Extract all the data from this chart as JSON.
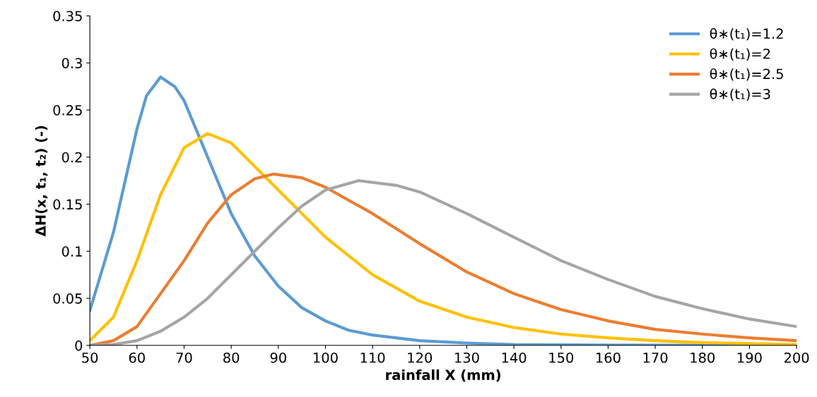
{
  "chart_data": {
    "type": "line",
    "xlabel": "rainfall X (mm)",
    "ylabel": "ΔH(x, t₁, t₂) (-)",
    "xlim": [
      50,
      200
    ],
    "xticks": [
      50,
      60,
      70,
      80,
      90,
      100,
      110,
      120,
      130,
      140,
      150,
      160,
      170,
      180,
      190,
      200
    ],
    "ylim": [
      0,
      0.35
    ],
    "yticks": [
      0,
      0.05,
      0.1,
      0.15,
      0.2,
      0.25,
      0.3,
      0.35
    ],
    "grid": false,
    "legend": "top right",
    "marker": "none",
    "line_style": "solid",
    "series": [
      {
        "name": "θ∗(t₁)=1.2",
        "color": "#5b9bd5",
        "x": [
          50,
          55,
          60,
          62,
          65,
          68,
          70,
          75,
          80,
          85,
          90,
          95,
          100,
          105,
          110,
          120,
          130,
          140,
          160,
          200
        ],
        "values": [
          0.037,
          0.12,
          0.23,
          0.265,
          0.285,
          0.275,
          0.26,
          0.2,
          0.14,
          0.095,
          0.063,
          0.04,
          0.026,
          0.016,
          0.011,
          0.005,
          0.0025,
          0.001,
          0.0003,
          0
        ]
      },
      {
        "name": "θ∗(t₁)=2",
        "color": "#ffc000",
        "x": [
          50,
          55,
          60,
          65,
          70,
          75,
          80,
          85,
          90,
          95,
          100,
          110,
          120,
          130,
          140,
          150,
          160,
          170,
          180,
          200
        ],
        "values": [
          0.005,
          0.03,
          0.09,
          0.16,
          0.21,
          0.225,
          0.215,
          0.19,
          0.165,
          0.14,
          0.115,
          0.075,
          0.047,
          0.03,
          0.019,
          0.012,
          0.008,
          0.005,
          0.003,
          0.001
        ]
      },
      {
        "name": "θ∗(t₁)=2.5",
        "color": "#ed7d31",
        "x": [
          50,
          55,
          60,
          65,
          70,
          75,
          80,
          85,
          89,
          95,
          100,
          110,
          120,
          130,
          140,
          150,
          160,
          170,
          180,
          190,
          200
        ],
        "values": [
          0,
          0.005,
          0.02,
          0.055,
          0.09,
          0.13,
          0.16,
          0.177,
          0.182,
          0.178,
          0.168,
          0.14,
          0.108,
          0.078,
          0.055,
          0.038,
          0.026,
          0.017,
          0.012,
          0.008,
          0.005
        ]
      },
      {
        "name": "θ∗(t₁)=3",
        "color": "#a5a5a5",
        "x": [
          50,
          55,
          60,
          65,
          70,
          75,
          80,
          85,
          90,
          95,
          100,
          107,
          115,
          120,
          130,
          140,
          150,
          160,
          170,
          180,
          190,
          200
        ],
        "values": [
          0,
          0.001,
          0.005,
          0.015,
          0.03,
          0.05,
          0.075,
          0.1,
          0.125,
          0.148,
          0.165,
          0.175,
          0.17,
          0.163,
          0.14,
          0.115,
          0.09,
          0.07,
          0.052,
          0.039,
          0.028,
          0.02
        ]
      }
    ]
  }
}
